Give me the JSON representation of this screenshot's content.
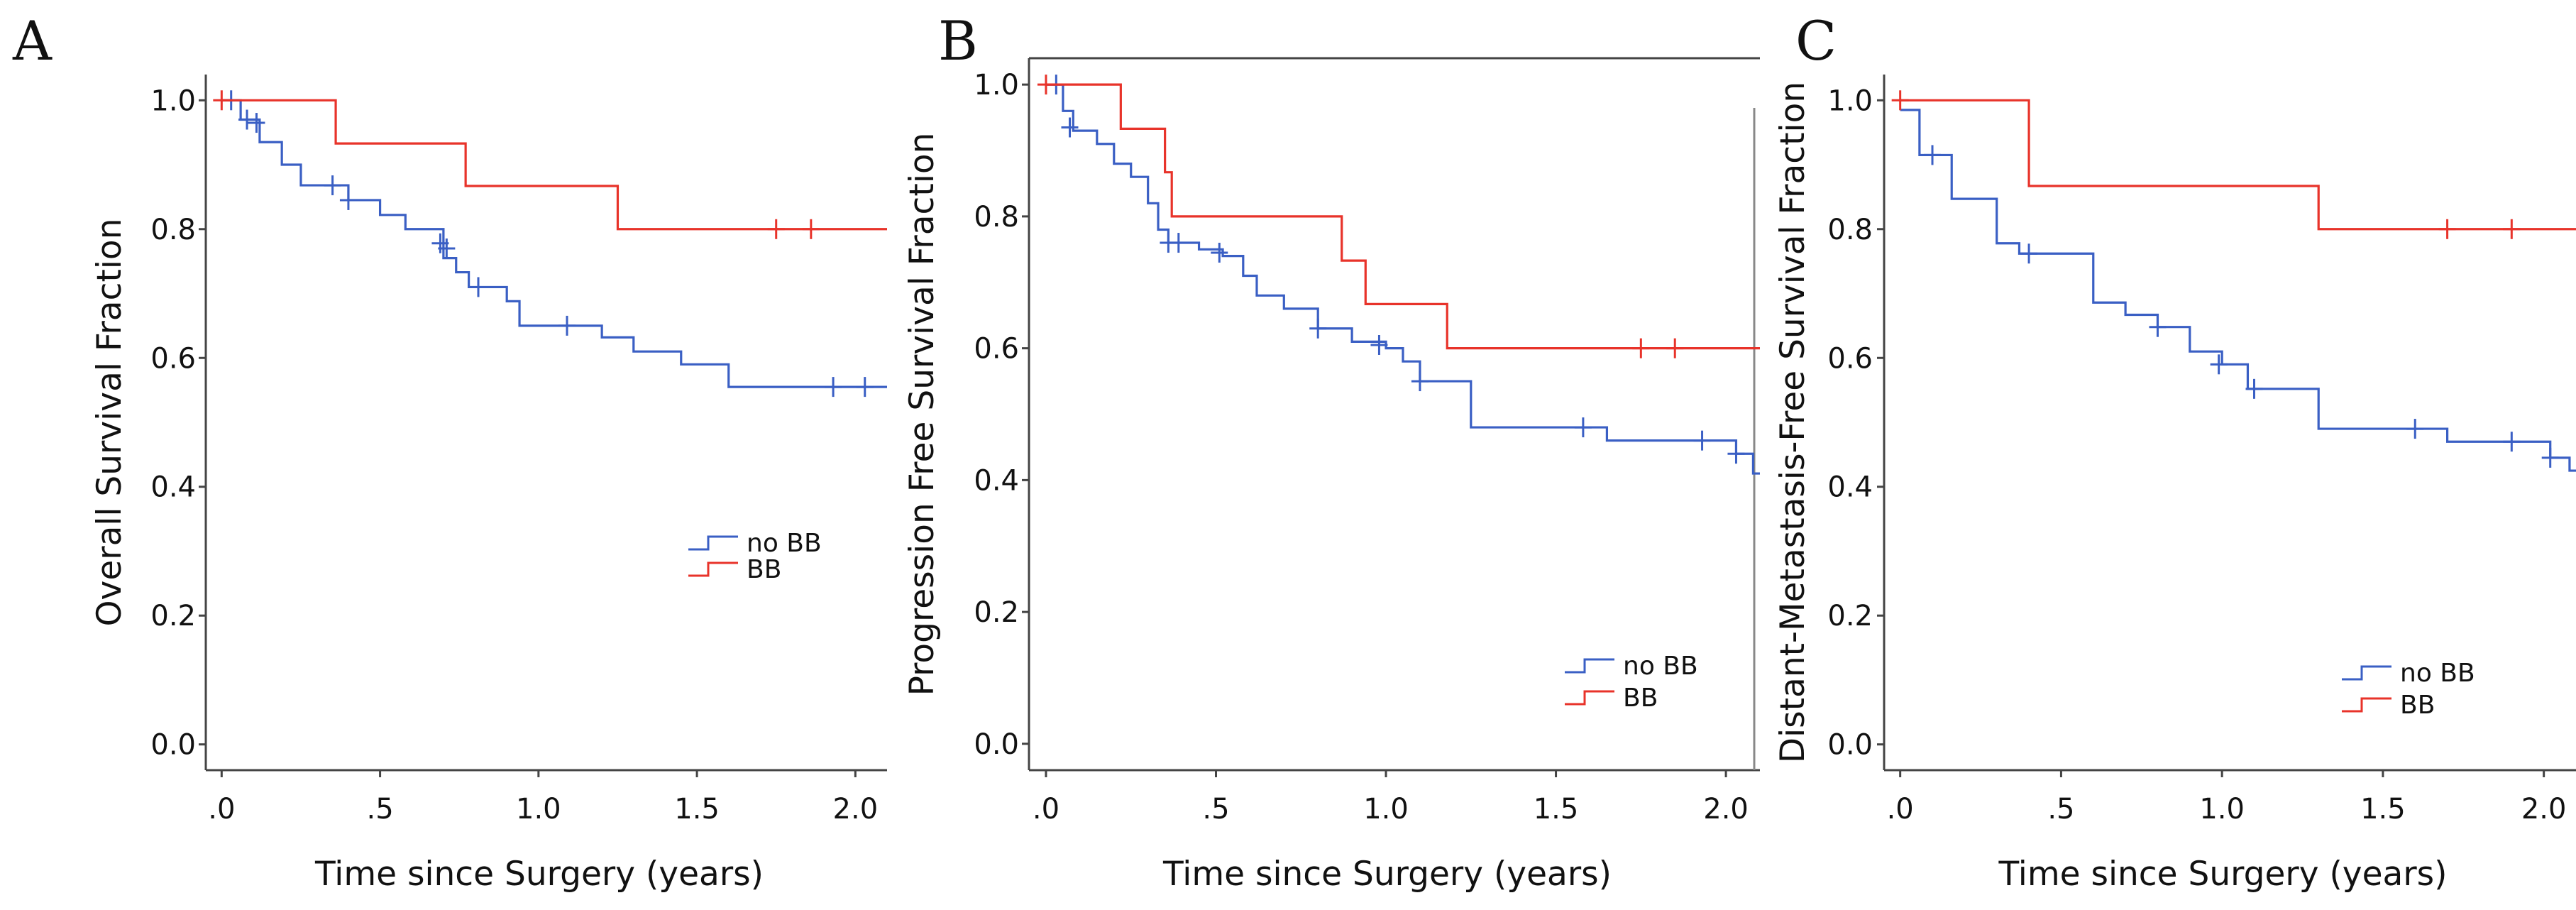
{
  "chart_data": [
    {
      "type": "line",
      "panel": "A",
      "title": "",
      "xlabel": "Time since Surgery (years)",
      "ylabel": "Overall Survival Fraction",
      "xlim": [
        -0.05,
        2.1
      ],
      "ylim": [
        -0.04,
        1.04
      ],
      "xticks": [
        0,
        0.5,
        1.0,
        1.5,
        2.0
      ],
      "xtick_labels": [
        ".0",
        ".5",
        "1.0",
        "1.5",
        "2.0"
      ],
      "yticks": [
        0,
        0.2,
        0.4,
        0.6,
        0.8,
        1.0
      ],
      "ytick_labels": [
        "0.0",
        "0.2",
        "0.4",
        "0.6",
        "0.8",
        "1.0"
      ],
      "legend_position": "lower-right",
      "series": [
        {
          "name": "no BB",
          "color": "#3a5fc4",
          "steps": [
            [
              0.0,
              1.0
            ],
            [
              0.06,
              0.97
            ],
            [
              0.12,
              0.935
            ],
            [
              0.19,
              0.9
            ],
            [
              0.25,
              0.868
            ],
            [
              0.4,
              0.845
            ],
            [
              0.5,
              0.822
            ],
            [
              0.58,
              0.8
            ],
            [
              0.7,
              0.755
            ],
            [
              0.74,
              0.733
            ],
            [
              0.78,
              0.71
            ],
            [
              0.9,
              0.688
            ],
            [
              0.94,
              0.65
            ],
            [
              1.2,
              0.632
            ],
            [
              1.3,
              0.61
            ],
            [
              1.45,
              0.59
            ],
            [
              1.6,
              0.555
            ],
            [
              2.1,
              0.555
            ]
          ],
          "censors": [
            [
              0.03,
              1.0
            ],
            [
              0.08,
              0.97
            ],
            [
              0.11,
              0.965
            ],
            [
              0.35,
              0.868
            ],
            [
              0.4,
              0.845
            ],
            [
              0.69,
              0.778
            ],
            [
              0.71,
              0.77
            ],
            [
              0.81,
              0.71
            ],
            [
              1.09,
              0.65
            ],
            [
              1.93,
              0.555
            ],
            [
              2.03,
              0.555
            ]
          ]
        },
        {
          "name": "BB",
          "color": "#e8332a",
          "steps": [
            [
              0.0,
              1.0
            ],
            [
              0.36,
              0.933
            ],
            [
              0.77,
              0.867
            ],
            [
              1.25,
              0.8
            ],
            [
              2.1,
              0.8
            ]
          ],
          "censors": [
            [
              0.0,
              1.0
            ],
            [
              1.75,
              0.8
            ],
            [
              1.86,
              0.8
            ]
          ]
        }
      ]
    },
    {
      "type": "line",
      "panel": "B",
      "title": "",
      "xlabel": "Time since Surgery (years)",
      "ylabel": "Progression Free Survival Fraction",
      "xlim": [
        -0.05,
        2.1
      ],
      "ylim": [
        -0.04,
        1.04
      ],
      "xticks": [
        0,
        0.5,
        1.0,
        1.5,
        2.0
      ],
      "xtick_labels": [
        ".0",
        ".5",
        "1.0",
        "1.5",
        "2.0"
      ],
      "yticks": [
        0,
        0.2,
        0.4,
        0.6,
        0.8,
        1.0
      ],
      "ytick_labels": [
        "0.0",
        "0.2",
        "0.4",
        "0.6",
        "0.8",
        "1.0"
      ],
      "legend_position": "lower-right",
      "series": [
        {
          "name": "no BB",
          "color": "#3a5fc4",
          "steps": [
            [
              0.0,
              1.0
            ],
            [
              0.05,
              0.96
            ],
            [
              0.08,
              0.93
            ],
            [
              0.15,
              0.91
            ],
            [
              0.2,
              0.88
            ],
            [
              0.25,
              0.86
            ],
            [
              0.3,
              0.82
            ],
            [
              0.33,
              0.78
            ],
            [
              0.36,
              0.76
            ],
            [
              0.45,
              0.75
            ],
            [
              0.52,
              0.74
            ],
            [
              0.58,
              0.71
            ],
            [
              0.62,
              0.68
            ],
            [
              0.7,
              0.66
            ],
            [
              0.8,
              0.63
            ],
            [
              0.9,
              0.61
            ],
            [
              1.0,
              0.6
            ],
            [
              1.05,
              0.58
            ],
            [
              1.1,
              0.55
            ],
            [
              1.25,
              0.48
            ],
            [
              1.6,
              0.48
            ],
            [
              1.65,
              0.46
            ],
            [
              2.0,
              0.46
            ],
            [
              2.03,
              0.44
            ],
            [
              2.08,
              0.41
            ],
            [
              2.1,
              0.41
            ]
          ],
          "censors": [
            [
              0.03,
              1.0
            ],
            [
              0.07,
              0.935
            ],
            [
              0.36,
              0.76
            ],
            [
              0.39,
              0.76
            ],
            [
              0.51,
              0.745
            ],
            [
              0.8,
              0.63
            ],
            [
              0.98,
              0.605
            ],
            [
              1.1,
              0.55
            ],
            [
              1.58,
              0.48
            ],
            [
              1.93,
              0.46
            ],
            [
              2.03,
              0.44
            ]
          ]
        },
        {
          "name": "BB",
          "color": "#e8332a",
          "steps": [
            [
              0.0,
              1.0
            ],
            [
              0.22,
              0.933
            ],
            [
              0.35,
              0.867
            ],
            [
              0.37,
              0.8
            ],
            [
              0.87,
              0.733
            ],
            [
              0.94,
              0.667
            ],
            [
              1.18,
              0.6
            ],
            [
              2.1,
              0.6
            ]
          ],
          "censors": [
            [
              0.0,
              1.0
            ],
            [
              1.75,
              0.6
            ],
            [
              1.85,
              0.6
            ]
          ]
        }
      ]
    },
    {
      "type": "line",
      "panel": "C",
      "title": "",
      "xlabel": "Time since Surgery (years)",
      "ylabel": "Distant-Metastasis-Free Survival Fraction",
      "xlim": [
        -0.05,
        2.1
      ],
      "ylim": [
        -0.04,
        1.04
      ],
      "xticks": [
        0,
        0.5,
        1.0,
        1.5,
        2.0
      ],
      "xtick_labels": [
        ".0",
        ".5",
        "1.0",
        "1.5",
        "2.0"
      ],
      "yticks": [
        0,
        0.2,
        0.4,
        0.6,
        0.8,
        1.0
      ],
      "ytick_labels": [
        "0.0",
        "0.2",
        "0.4",
        "0.6",
        "0.8",
        "1.0"
      ],
      "legend_position": "lower-right",
      "series": [
        {
          "name": "no BB",
          "color": "#3a5fc4",
          "steps": [
            [
              0.0,
              0.985
            ],
            [
              0.06,
              0.915
            ],
            [
              0.16,
              0.847
            ],
            [
              0.3,
              0.778
            ],
            [
              0.37,
              0.762
            ],
            [
              0.6,
              0.686
            ],
            [
              0.7,
              0.667
            ],
            [
              0.8,
              0.648
            ],
            [
              0.9,
              0.61
            ],
            [
              1.0,
              0.59
            ],
            [
              1.08,
              0.552
            ],
            [
              1.3,
              0.49
            ],
            [
              1.6,
              0.49
            ],
            [
              1.7,
              0.47
            ],
            [
              2.0,
              0.47
            ],
            [
              2.02,
              0.445
            ],
            [
              2.08,
              0.425
            ],
            [
              2.1,
              0.425
            ]
          ],
          "censors": [
            [
              0.1,
              0.915
            ],
            [
              0.4,
              0.762
            ],
            [
              0.8,
              0.648
            ],
            [
              0.99,
              0.59
            ],
            [
              1.1,
              0.552
            ],
            [
              1.6,
              0.49
            ],
            [
              1.9,
              0.47
            ],
            [
              2.02,
              0.445
            ]
          ]
        },
        {
          "name": "BB",
          "color": "#e8332a",
          "steps": [
            [
              0.0,
              1.0
            ],
            [
              0.4,
              0.867
            ],
            [
              1.3,
              0.8
            ],
            [
              2.1,
              0.8
            ]
          ],
          "censors": [
            [
              0.0,
              1.0
            ],
            [
              1.7,
              0.8
            ],
            [
              1.9,
              0.8
            ]
          ]
        }
      ]
    }
  ]
}
